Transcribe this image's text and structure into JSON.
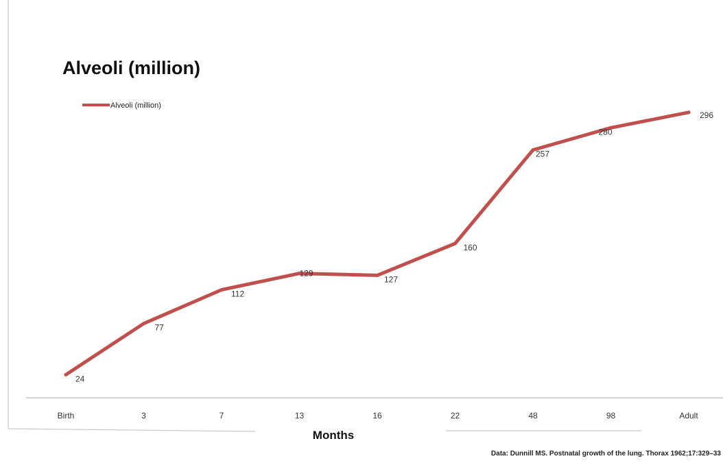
{
  "chart_data": {
    "type": "line",
    "title": "Alveoli (million)",
    "categories": [
      "Birth",
      "3",
      "7",
      "13",
      "16",
      "22",
      "48",
      "98",
      "Adult"
    ],
    "series": [
      {
        "name": "Alveoli (million)",
        "values": [
          24,
          77,
          112,
          129,
          127,
          160,
          257,
          280,
          296
        ],
        "color": "#c0504d"
      }
    ],
    "xlabel": "Months",
    "ylabel": "",
    "ylim": [
      0,
      320
    ],
    "grid": false,
    "legend_position": "top-left",
    "data_labels": true
  },
  "source_note": "Data: Dunnill MS. Postnatal growth of the lung. Thorax 1962;17:329–33"
}
